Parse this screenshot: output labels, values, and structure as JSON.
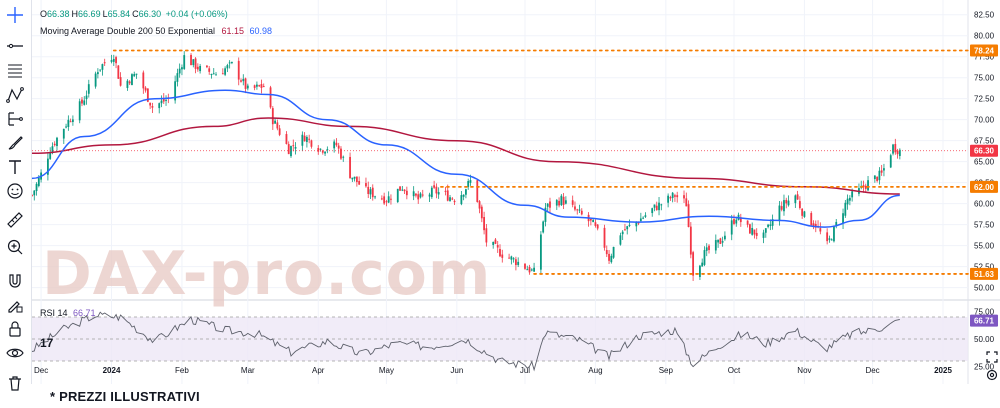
{
  "legend": {
    "ohlc": [
      {
        "k": "O",
        "v": "66.38"
      },
      {
        "k": "H",
        "v": "66.69"
      },
      {
        "k": "L",
        "v": "65.84"
      },
      {
        "k": "C",
        "v": "66.30"
      }
    ],
    "change": "+0.04 (+0.06%)",
    "indicator_label": "Moving Average Double 200 50 Exponential",
    "ma200_value": "61.15",
    "ma50_value": "60.98",
    "rsi_label": "RSI 14",
    "rsi_value": "66.71"
  },
  "watermark": "DAX-pro.com",
  "footer_note": "* PREZZI ILLUSTRATIVI",
  "tradingview_logo": "17",
  "toolbar_icons": [
    "crosshair-icon",
    "horizontal-line-icon",
    "fib-retracement-icon",
    "pattern-icon",
    "measure-icon",
    "brush-icon",
    "text-icon",
    "emoji-icon",
    "ruler-icon",
    "zoom-in-icon",
    "magnet-icon",
    "lock-drawing-icon",
    "lock-icon",
    "eye-icon",
    "trash-icon"
  ],
  "colors": {
    "up": "#089981",
    "down": "#f23645",
    "ma200": "#b2173f",
    "ma50": "#2962ff",
    "hline": "#f57c00",
    "rsi": "#7e57c2",
    "last_price": "#f23645"
  },
  "chart_data": [
    {
      "type": "candlestick",
      "title": "",
      "x_ticks": [
        "Dec",
        "2024",
        "Feb",
        "Mar",
        "Apr",
        "May",
        "Jun",
        "Jul",
        "Aug",
        "Sep",
        "Oct",
        "Nov",
        "Dec",
        "2025"
      ],
      "x_range": [
        "2023-11-27",
        "2025-01-12"
      ],
      "y_ticks": [
        "82.50",
        "80.00",
        "77.50",
        "75.00",
        "72.50",
        "70.00",
        "67.50",
        "65.00",
        "62.50",
        "60.00",
        "57.50",
        "55.00",
        "52.50",
        "50.00"
      ],
      "ylim": [
        49.0,
        83.3
      ],
      "grid": true,
      "price_trajectory": [
        [
          "2023-11-27",
          61.0
        ],
        [
          "2023-12-01",
          63.5
        ],
        [
          "2023-12-05",
          66.5
        ],
        [
          "2023-12-12",
          69.5
        ],
        [
          "2023-12-19",
          72.0
        ],
        [
          "2023-12-26",
          76.0
        ],
        [
          "2024-01-02",
          77.8
        ],
        [
          "2024-01-05",
          74.0
        ],
        [
          "2024-01-12",
          75.5
        ],
        [
          "2024-01-19",
          71.5
        ],
        [
          "2024-01-26",
          72.5
        ],
        [
          "2024-02-02",
          77.5
        ],
        [
          "2024-02-09",
          76.0
        ],
        [
          "2024-02-16",
          75.5
        ],
        [
          "2024-02-23",
          76.5
        ],
        [
          "2024-03-01",
          73.5
        ],
        [
          "2024-03-08",
          74.0
        ],
        [
          "2024-03-12",
          70.0
        ],
        [
          "2024-03-19",
          66.5
        ],
        [
          "2024-03-26",
          68.0
        ],
        [
          "2024-04-02",
          66.5
        ],
        [
          "2024-04-09",
          67.0
        ],
        [
          "2024-04-15",
          63.5
        ],
        [
          "2024-04-22",
          61.5
        ],
        [
          "2024-05-01",
          60.5
        ],
        [
          "2024-05-08",
          62.0
        ],
        [
          "2024-05-15",
          60.5
        ],
        [
          "2024-05-22",
          61.5
        ],
        [
          "2024-06-01",
          60.5
        ],
        [
          "2024-06-08",
          63.0
        ],
        [
          "2024-06-14",
          55.5
        ],
        [
          "2024-06-21",
          54.0
        ],
        [
          "2024-06-28",
          53.0
        ],
        [
          "2024-07-05",
          51.8
        ],
        [
          "2024-07-10",
          59.5
        ],
        [
          "2024-07-17",
          60.5
        ],
        [
          "2024-07-24",
          59.0
        ],
        [
          "2024-07-31",
          57.5
        ],
        [
          "2024-08-05",
          55.0
        ],
        [
          "2024-08-07",
          53.5
        ],
        [
          "2024-08-12",
          56.5
        ],
        [
          "2024-08-20",
          58.0
        ],
        [
          "2024-08-27",
          59.5
        ],
        [
          "2024-09-02",
          60.5
        ],
        [
          "2024-09-05",
          61.0
        ],
        [
          "2024-09-10",
          60.0
        ],
        [
          "2024-09-13",
          51.8
        ],
        [
          "2024-09-18",
          54.0
        ],
        [
          "2024-09-25",
          55.5
        ],
        [
          "2024-10-02",
          58.5
        ],
        [
          "2024-10-07",
          57.0
        ],
        [
          "2024-10-14",
          56.0
        ],
        [
          "2024-10-21",
          59.5
        ],
        [
          "2024-10-28",
          61.0
        ],
        [
          "2024-11-01",
          58.5
        ],
        [
          "2024-11-06",
          57.5
        ],
        [
          "2024-11-11",
          55.0
        ],
        [
          "2024-11-15",
          57.5
        ],
        [
          "2024-11-20",
          60.5
        ],
        [
          "2024-11-25",
          61.5
        ],
        [
          "2024-11-29",
          62.5
        ],
        [
          "2024-12-05",
          63.5
        ],
        [
          "2024-12-10",
          66.8
        ],
        [
          "2024-12-13",
          66.3
        ]
      ],
      "series": [
        {
          "name": "Moving Average Double 200",
          "type": "line",
          "values": [
            [
              "2023-11-27",
              66.0
            ],
            [
              "2024-01-01",
              67.0
            ],
            [
              "2024-02-15",
              69.2
            ],
            [
              "2024-03-10",
              70.2
            ],
            [
              "2024-04-15",
              69.2
            ],
            [
              "2024-06-01",
              67.5
            ],
            [
              "2024-07-15",
              65.0
            ],
            [
              "2024-09-15",
              63.0
            ],
            [
              "2024-11-01",
              62.0
            ],
            [
              "2024-12-13",
              61.15
            ]
          ]
        },
        {
          "name": "Moving Average Double 50",
          "type": "line",
          "values": [
            [
              "2023-11-27",
              63.0
            ],
            [
              "2023-12-20",
              68.0
            ],
            [
              "2024-01-20",
              72.5
            ],
            [
              "2024-02-20",
              73.5
            ],
            [
              "2024-03-10",
              73.0
            ],
            [
              "2024-04-05",
              70.0
            ],
            [
              "2024-05-01",
              67.0
            ],
            [
              "2024-06-01",
              63.5
            ],
            [
              "2024-07-01",
              59.8
            ],
            [
              "2024-07-20",
              58.4
            ],
            [
              "2024-08-20",
              57.8
            ],
            [
              "2024-09-20",
              58.5
            ],
            [
              "2024-10-20",
              58.0
            ],
            [
              "2024-11-10",
              57.2
            ],
            [
              "2024-11-25",
              58.0
            ],
            [
              "2024-12-13",
              60.98
            ]
          ]
        }
      ],
      "price_labels": [
        {
          "value": 78.24,
          "label": "78.24",
          "color": "#f57c00",
          "style": "dotted"
        },
        {
          "value": 66.3,
          "label": "66.30",
          "color": "#f23645",
          "style": "last-price"
        },
        {
          "value": 62.0,
          "label": "62.00",
          "color": "#f57c00",
          "style": "dotted"
        },
        {
          "value": 51.63,
          "label": "51.63",
          "color": "#f57c00",
          "style": "dotted"
        }
      ],
      "hline_starts": {
        "78.24": "2024-01-02",
        "62.00": "2024-05-25",
        "51.63": "2024-07-05"
      }
    },
    {
      "type": "line",
      "title": "RSI 14",
      "y_ticks": [
        "75.00",
        "50.00",
        "25.00"
      ],
      "ylim": [
        20,
        80
      ],
      "bands": [
        30,
        70
      ],
      "series": [
        {
          "name": "RSI 14",
          "values": [
            [
              "2023-11-27",
              40
            ],
            [
              "2023-12-10",
              58
            ],
            [
              "2023-12-25",
              72
            ],
            [
              "2024-01-05",
              70
            ],
            [
              "2024-01-20",
              48
            ],
            [
              "2024-02-05",
              68
            ],
            [
              "2024-02-20",
              58
            ],
            [
              "2024-03-05",
              55
            ],
            [
              "2024-03-20",
              38
            ],
            [
              "2024-04-05",
              48
            ],
            [
              "2024-04-20",
              36
            ],
            [
              "2024-05-05",
              46
            ],
            [
              "2024-05-20",
              43
            ],
            [
              "2024-06-05",
              50
            ],
            [
              "2024-06-20",
              30
            ],
            [
              "2024-07-05",
              25
            ],
            [
              "2024-07-10",
              56
            ],
            [
              "2024-07-25",
              49
            ],
            [
              "2024-08-07",
              34
            ],
            [
              "2024-08-20",
              53
            ],
            [
              "2024-09-05",
              58
            ],
            [
              "2024-09-13",
              27
            ],
            [
              "2024-09-25",
              45
            ],
            [
              "2024-10-05",
              55
            ],
            [
              "2024-10-15",
              46
            ],
            [
              "2024-10-28",
              58
            ],
            [
              "2024-11-10",
              41
            ],
            [
              "2024-11-22",
              55
            ],
            [
              "2024-12-01",
              58
            ],
            [
              "2024-12-13",
              66.71
            ]
          ]
        }
      ]
    }
  ]
}
